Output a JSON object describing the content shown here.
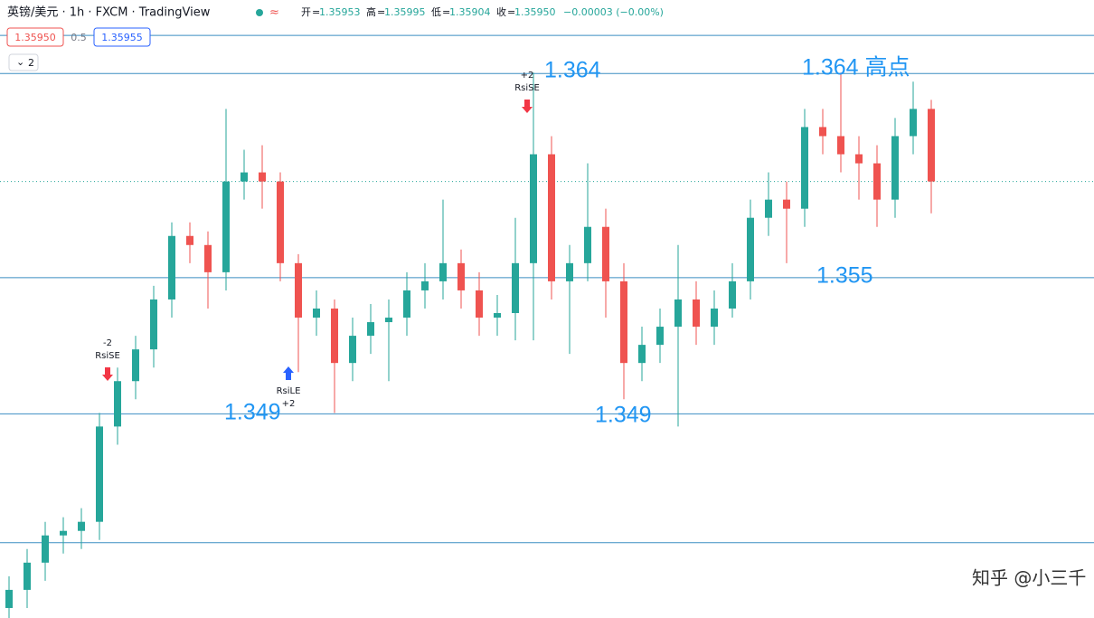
{
  "header": {
    "symbol": "英镑/美元 · 1h · FXCM · TradingView",
    "ohlc": [
      {
        "label": "开",
        "value": "1.35953"
      },
      {
        "label": "高",
        "value": "1.35995"
      },
      {
        "label": "低",
        "value": "1.35904"
      },
      {
        "label": "收",
        "value": "1.35950"
      }
    ],
    "change": "−0.00003 (−0.00%)",
    "bid": "1.35950",
    "spread": "0.5",
    "ask": "1.35955",
    "indicators": "2"
  },
  "chart_data": {
    "type": "candlestick",
    "up_color": "#26a69a",
    "down_color": "#ef5350",
    "ylim": [
      1.34,
      1.36724
    ],
    "open": [
      1.34044,
      1.34124,
      1.34244,
      1.34364,
      1.34384,
      1.34424,
      1.34844,
      1.35044,
      1.35184,
      1.35404,
      1.35684,
      1.35644,
      1.35524,
      1.35924,
      1.35964,
      1.35924,
      1.35564,
      1.35324,
      1.35364,
      1.35124,
      1.35244,
      1.35304,
      1.35324,
      1.35444,
      1.35484,
      1.35564,
      1.35444,
      1.35324,
      1.35344,
      1.35564,
      1.36044,
      1.35484,
      1.35564,
      1.35724,
      1.35484,
      1.35124,
      1.35204,
      1.35284,
      1.35404,
      1.35284,
      1.35364,
      1.35484,
      1.35764,
      1.35844,
      1.35804,
      1.36164,
      1.36124,
      1.36044,
      1.36004,
      1.35844,
      1.36124,
      1.36244
    ],
    "high": [
      1.34184,
      1.34304,
      1.34424,
      1.34444,
      1.34484,
      1.34904,
      1.35104,
      1.35244,
      1.35464,
      1.35744,
      1.35744,
      1.35704,
      1.36244,
      1.36064,
      1.36084,
      1.35964,
      1.35604,
      1.35444,
      1.35404,
      1.35324,
      1.35384,
      1.35404,
      1.35524,
      1.35564,
      1.35844,
      1.35624,
      1.35524,
      1.35424,
      1.35764,
      1.36404,
      1.36124,
      1.35644,
      1.36004,
      1.35804,
      1.35564,
      1.35284,
      1.35364,
      1.35644,
      1.35484,
      1.35444,
      1.35564,
      1.35844,
      1.35964,
      1.35924,
      1.36244,
      1.36244,
      1.36404,
      1.36124,
      1.36084,
      1.36204,
      1.36364,
      1.36284
    ],
    "low": [
      1.33964,
      1.34044,
      1.34164,
      1.34284,
      1.34304,
      1.34344,
      1.34764,
      1.34964,
      1.35104,
      1.35324,
      1.35564,
      1.35364,
      1.35444,
      1.35844,
      1.35804,
      1.35484,
      1.35084,
      1.35244,
      1.34904,
      1.35044,
      1.35164,
      1.35044,
      1.35244,
      1.35364,
      1.35404,
      1.35364,
      1.35244,
      1.35244,
      1.35224,
      1.35224,
      1.35404,
      1.35164,
      1.35484,
      1.35324,
      1.34964,
      1.35044,
      1.35124,
      1.34844,
      1.35204,
      1.35204,
      1.35324,
      1.35404,
      1.35684,
      1.35564,
      1.35724,
      1.36044,
      1.35964,
      1.35844,
      1.35724,
      1.35764,
      1.36044,
      1.35784
    ],
    "close": [
      1.34124,
      1.34244,
      1.34364,
      1.34384,
      1.34424,
      1.34844,
      1.35044,
      1.35184,
      1.35404,
      1.35684,
      1.35644,
      1.35524,
      1.35924,
      1.35964,
      1.35924,
      1.35564,
      1.35324,
      1.35364,
      1.35124,
      1.35244,
      1.35304,
      1.35324,
      1.35444,
      1.35484,
      1.35564,
      1.35444,
      1.35324,
      1.35344,
      1.35564,
      1.36044,
      1.35484,
      1.35564,
      1.35724,
      1.35484,
      1.35124,
      1.35204,
      1.35284,
      1.35404,
      1.35284,
      1.35364,
      1.35484,
      1.35764,
      1.35844,
      1.35804,
      1.36164,
      1.36124,
      1.36044,
      1.36004,
      1.35844,
      1.36124,
      1.36244,
      1.35924
    ],
    "levels": [
      1.36568,
      1.364,
      1.355,
      1.349,
      1.34332
    ],
    "level_color": "#3b8ec2",
    "annotations": [
      "1.364",
      "1.364 高点",
      "1.355",
      "1.349",
      "1.349"
    ],
    "signals": [
      [
        "-2",
        "RsiSE"
      ],
      [
        "+2",
        "RsiSE"
      ],
      [
        "RsiLE",
        "+2"
      ]
    ],
    "watermark": "知乎 @小三千"
  }
}
